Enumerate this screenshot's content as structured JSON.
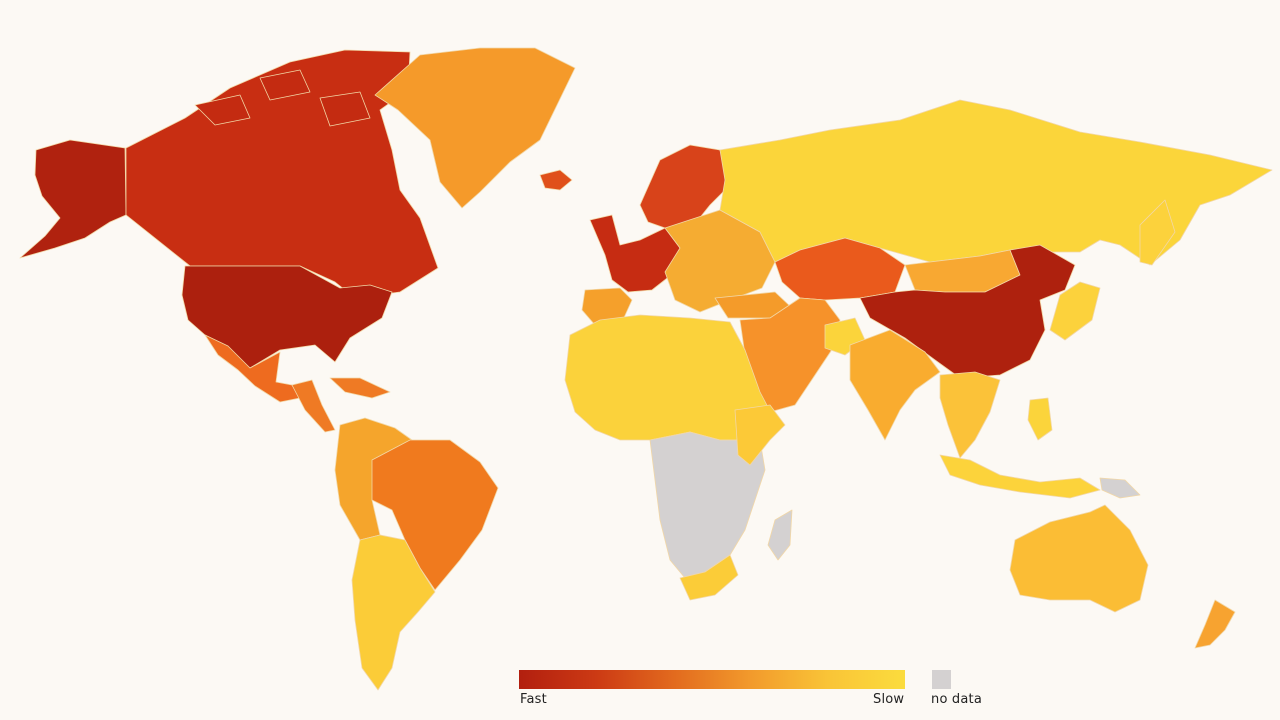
{
  "legend": {
    "fast_label": "Fast",
    "slow_label": "Slow",
    "no_data_label": "no data",
    "gradient_colors": [
      "#b21f0f",
      "#cc3a14",
      "#e26a1e",
      "#f29a2c",
      "#f9c437",
      "#fbdc3d"
    ],
    "no_data_color": "#d4d1d1"
  },
  "colors": {
    "background": "#fcf9f4",
    "border": "#f2d7a6"
  },
  "regions": [
    {
      "name": "Alaska",
      "level": 0.05
    },
    {
      "name": "Canada",
      "level": 0.15
    },
    {
      "name": "United States",
      "level": 0.05
    },
    {
      "name": "Greenland",
      "level": 0.55
    },
    {
      "name": "Mexico",
      "level": 0.4
    },
    {
      "name": "Central America",
      "level": 0.5
    },
    {
      "name": "Brazil",
      "level": 0.35
    },
    {
      "name": "Andean South America",
      "level": 0.55
    },
    {
      "name": "Southern South America",
      "level": 0.85
    },
    {
      "name": "Western Europe",
      "level": 0.1
    },
    {
      "name": "Scandinavia",
      "level": 0.2
    },
    {
      "name": "Eastern Europe",
      "level": 0.55
    },
    {
      "name": "Russia",
      "level": 0.95
    },
    {
      "name": "Kazakhstan and Central Asia",
      "level": 0.3
    },
    {
      "name": "Mongolia",
      "level": 0.75
    },
    {
      "name": "China",
      "level": 0.05
    },
    {
      "name": "Middle East",
      "level": 0.55
    },
    {
      "name": "Afghanistan",
      "level": 0.9
    },
    {
      "name": "India",
      "level": 0.7
    },
    {
      "name": "Southeast Asia",
      "level": 0.8
    },
    {
      "name": "Japan",
      "level": 0.85
    },
    {
      "name": "North Africa",
      "level": 0.85
    },
    {
      "name": "Sub-Saharan Africa",
      "level": null
    },
    {
      "name": "South Africa",
      "level": 0.9
    },
    {
      "name": "Indonesia",
      "level": 0.9
    },
    {
      "name": "Australia",
      "level": 0.8
    },
    {
      "name": "New Zealand",
      "level": 0.65
    }
  ]
}
